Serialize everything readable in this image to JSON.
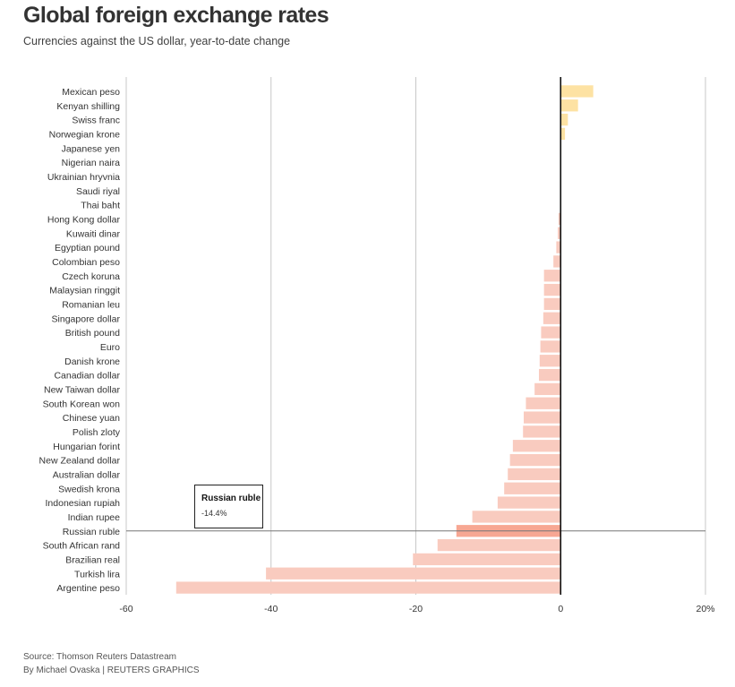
{
  "header": {
    "title": "Global foreign exchange rates",
    "subtitle": "Currencies against the US dollar, year-to-date change"
  },
  "footer": {
    "source": "Source: Thomson Reuters Datastream",
    "credit": "By Michael Ovaska | REUTERS GRAPHICS"
  },
  "tooltip": {
    "name": "Russian ruble",
    "value": "-14.4%"
  },
  "colors": {
    "positive": "#fde2a3",
    "negative": "#f9cbbf",
    "highlight": "#f7a793",
    "zero_line": "#111111",
    "grid": "#c8c8c8"
  },
  "chart_data": {
    "type": "bar",
    "orientation": "horizontal",
    "categories": [
      "Mexican peso",
      "Kenyan shilling",
      "Swiss franc",
      "Norwegian krone",
      "Japanese yen",
      "Nigerian naira",
      "Ukrainian hryvnia",
      "Saudi riyal",
      "Thai baht",
      "Hong Kong dollar",
      "Kuwaiti dinar",
      "Egyptian pound",
      "Colombian peso",
      "Czech koruna",
      "Malaysian ringgit",
      "Romanian leu",
      "Singapore dollar",
      "British pound",
      "Euro",
      "Danish krone",
      "Canadian dollar",
      "New Taiwan dollar",
      "South Korean won",
      "Chinese yuan",
      "Polish zloty",
      "Hungarian forint",
      "New Zealand dollar",
      "Australian dollar",
      "Swedish krona",
      "Indonesian rupiah",
      "Indian rupee",
      "Russian ruble",
      "South African rand",
      "Brazilian real",
      "Turkish lira",
      "Argentine peso"
    ],
    "values": [
      4.5,
      2.4,
      1.0,
      0.6,
      0.1,
      0.0,
      0.0,
      0.0,
      0.0,
      -0.3,
      -0.4,
      -0.6,
      -1.0,
      -2.3,
      -2.3,
      -2.3,
      -2.4,
      -2.7,
      -2.8,
      -2.9,
      -3.0,
      -3.6,
      -4.8,
      -5.1,
      -5.2,
      -6.6,
      -7.0,
      -7.3,
      -7.8,
      -8.7,
      -12.2,
      -14.4,
      -17.0,
      -20.4,
      -40.7,
      -53.1
    ],
    "highlight": "Russian ruble",
    "xlim": [
      -60,
      20
    ],
    "xticks": [
      -60,
      -40,
      -20,
      0,
      20
    ],
    "xtick_labels": [
      "-60",
      "-40",
      "-20",
      "0",
      "20%"
    ],
    "grid": true
  }
}
